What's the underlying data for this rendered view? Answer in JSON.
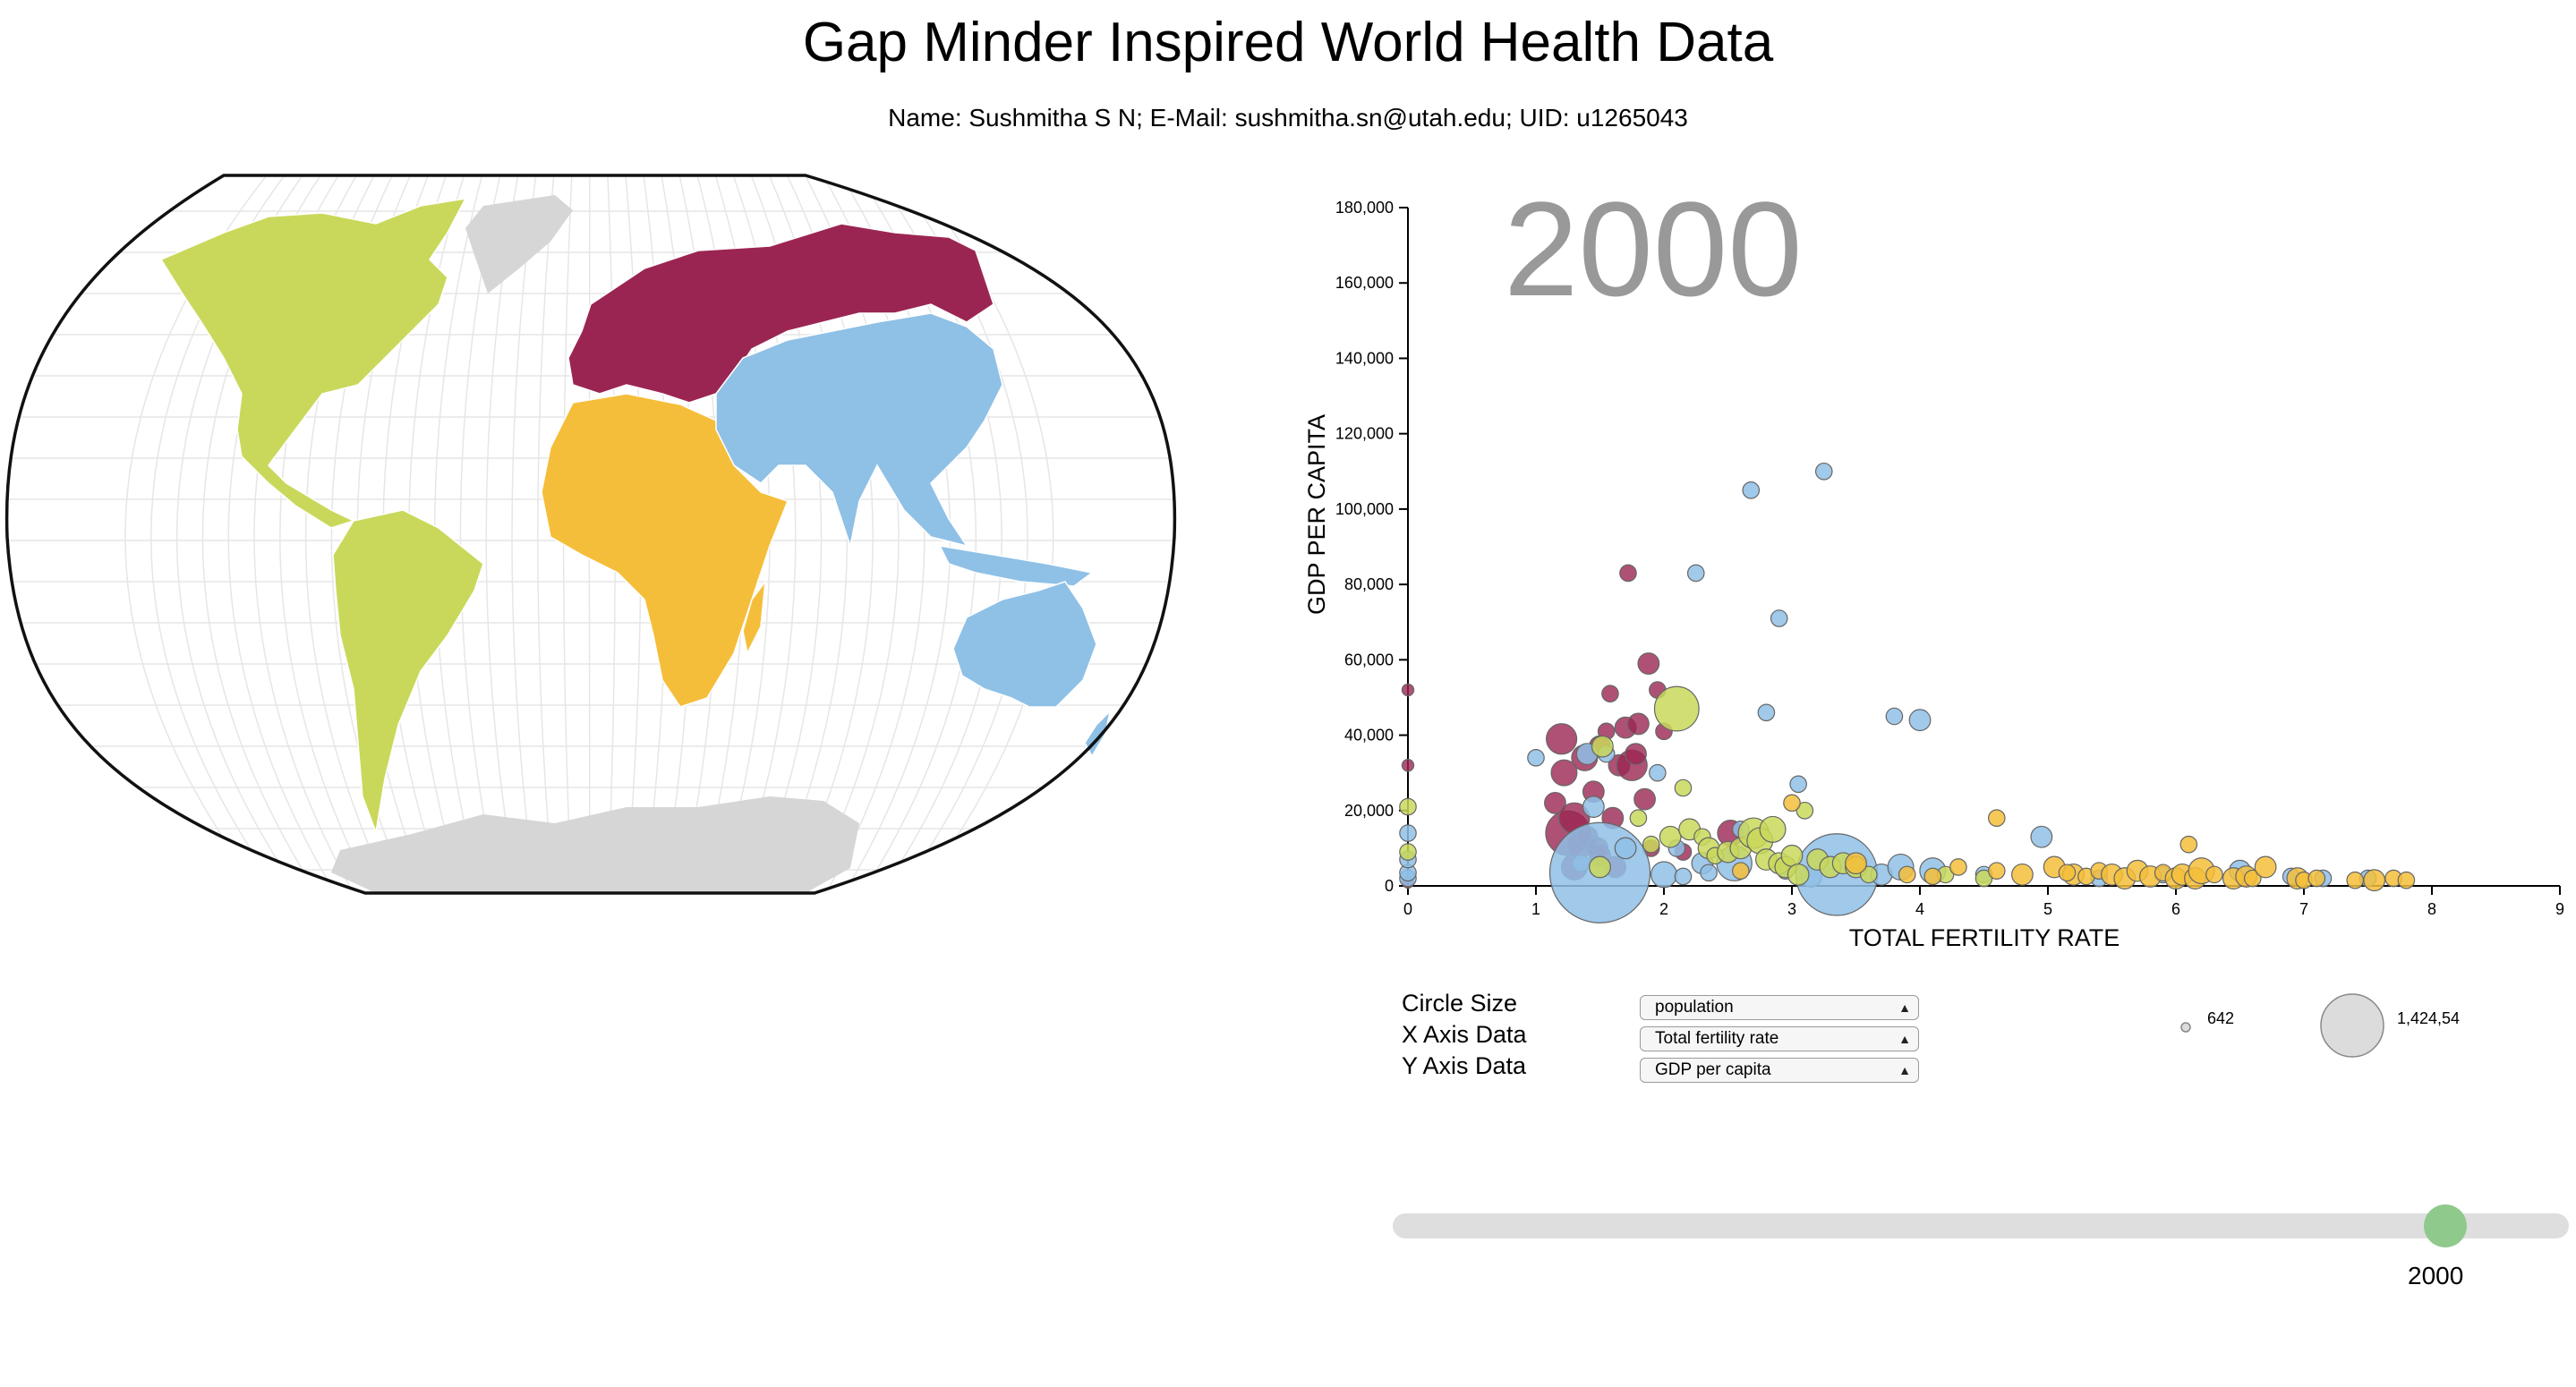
{
  "header": {
    "title": "Gap Minder Inspired World Health Data",
    "subtitle": "Name: Sushmitha S N; E-Mail: sushmitha.sn@utah.edu; UID: u1265043"
  },
  "colors": {
    "americas": "#c9d85a",
    "europe": "#9b2552",
    "africa": "#f5be3a",
    "asia": "#8fc0e6",
    "other": "#d7d7d7",
    "slider_thumb": "#8fc98c"
  },
  "map": {
    "regions": [
      "americas",
      "europe",
      "africa",
      "asia",
      "antarctica-greenland"
    ]
  },
  "controls": {
    "circle_size_label": "Circle Size",
    "x_axis_label": "X Axis Data",
    "y_axis_label": "Y Axis Data",
    "circle_size_value": "population",
    "x_axis_value": "Total fertility rate",
    "y_axis_value": "GDP per capita",
    "legend_min": "642",
    "legend_max": "1,424,54"
  },
  "slider": {
    "value": "2000"
  },
  "chart_data": {
    "type": "scatter",
    "year_label": "2000",
    "xlabel": "TOTAL FERTILITY RATE",
    "ylabel": "GDP PER CAPITA",
    "xlim": [
      0,
      9
    ],
    "ylim": [
      0,
      180000
    ],
    "xticks": [
      "0",
      "1",
      "2",
      "3",
      "4",
      "5",
      "6",
      "7",
      "8",
      "9"
    ],
    "yticks": [
      "0",
      "20,000",
      "40,000",
      "60,000",
      "80,000",
      "100,000",
      "120,000",
      "140,000",
      "160,000",
      "180,000"
    ],
    "series": [
      {
        "region": "europe",
        "points": [
          [
            0,
            52000,
            1
          ],
          [
            0,
            32000,
            1
          ],
          [
            0,
            1000,
            1
          ],
          [
            1.15,
            22000,
            3
          ],
          [
            1.2,
            39000,
            5
          ],
          [
            1.22,
            30000,
            4
          ],
          [
            1.25,
            14000,
            8
          ],
          [
            1.3,
            5000,
            4
          ],
          [
            1.35,
            11000,
            4
          ],
          [
            1.3,
            18000,
            5
          ],
          [
            1.38,
            34000,
            4
          ],
          [
            1.4,
            13000,
            3
          ],
          [
            1.45,
            25000,
            3
          ],
          [
            1.5,
            8000,
            3
          ],
          [
            1.5,
            37000,
            3
          ],
          [
            1.55,
            41000,
            2
          ],
          [
            1.58,
            51000,
            2
          ],
          [
            1.6,
            18000,
            3
          ],
          [
            1.62,
            5000,
            3
          ],
          [
            1.65,
            32000,
            3
          ],
          [
            1.7,
            42000,
            3
          ],
          [
            1.72,
            83000,
            2
          ],
          [
            1.75,
            32000,
            5
          ],
          [
            1.78,
            35000,
            3
          ],
          [
            1.8,
            43000,
            3
          ],
          [
            1.85,
            23000,
            3
          ],
          [
            1.88,
            59000,
            3
          ],
          [
            1.9,
            10000,
            2
          ],
          [
            1.95,
            52000,
            2
          ],
          [
            2.0,
            41000,
            2
          ],
          [
            2.15,
            9000,
            2
          ],
          [
            2.52,
            14000,
            4
          ],
          [
            1.48,
            10000,
            3
          ]
        ]
      },
      {
        "region": "asia",
        "points": [
          [
            0,
            2000,
            2
          ],
          [
            0,
            3500,
            2
          ],
          [
            0,
            7000,
            2
          ],
          [
            0,
            14000,
            2
          ],
          [
            1.0,
            34000,
            2
          ],
          [
            1.35,
            6000,
            2
          ],
          [
            1.4,
            35000,
            3
          ],
          [
            1.45,
            21000,
            3
          ],
          [
            1.5,
            3500,
            20
          ],
          [
            1.55,
            35000,
            2
          ],
          [
            1.7,
            10000,
            3
          ],
          [
            1.95,
            30000,
            2
          ],
          [
            2.0,
            3000,
            4
          ],
          [
            2.1,
            10000,
            2
          ],
          [
            2.25,
            83000,
            2
          ],
          [
            2.3,
            6000,
            3
          ],
          [
            2.55,
            6000,
            6
          ],
          [
            2.6,
            15000,
            2
          ],
          [
            2.68,
            105000,
            2
          ],
          [
            2.8,
            46000,
            2
          ],
          [
            2.9,
            71000,
            2
          ],
          [
            2.95,
            4000,
            2
          ],
          [
            3.05,
            27000,
            2
          ],
          [
            3.15,
            2500,
            3
          ],
          [
            3.25,
            110000,
            2
          ],
          [
            3.35,
            3000,
            16
          ],
          [
            3.7,
            3000,
            3
          ],
          [
            3.8,
            45000,
            2
          ],
          [
            3.85,
            5000,
            4
          ],
          [
            4.0,
            44000,
            3
          ],
          [
            4.1,
            4000,
            4
          ],
          [
            4.5,
            3000,
            2
          ],
          [
            4.95,
            13000,
            3
          ],
          [
            5.4,
            2000,
            2
          ],
          [
            5.9,
            3000,
            2
          ],
          [
            6.5,
            4000,
            3
          ],
          [
            6.9,
            2500,
            2
          ],
          [
            7.15,
            2000,
            2
          ],
          [
            7.5,
            2000,
            2
          ],
          [
            2.35,
            3500,
            2
          ],
          [
            2.15,
            2500,
            2
          ]
        ]
      },
      {
        "region": "americas",
        "points": [
          [
            0,
            21000,
            2
          ],
          [
            0,
            9000,
            2
          ],
          [
            1.5,
            5000,
            3
          ],
          [
            1.52,
            37000,
            3
          ],
          [
            1.8,
            18000,
            2
          ],
          [
            1.9,
            11000,
            2
          ],
          [
            2.05,
            13000,
            3
          ],
          [
            2.1,
            47000,
            8
          ],
          [
            2.15,
            26000,
            2
          ],
          [
            2.2,
            15000,
            3
          ],
          [
            2.3,
            13000,
            2
          ],
          [
            2.35,
            10000,
            3
          ],
          [
            2.4,
            8000,
            2
          ],
          [
            2.5,
            9000,
            3
          ],
          [
            2.6,
            10000,
            3
          ],
          [
            2.7,
            14000,
            5
          ],
          [
            2.75,
            12000,
            4
          ],
          [
            2.8,
            7000,
            3
          ],
          [
            2.85,
            15000,
            4
          ],
          [
            2.9,
            6000,
            3
          ],
          [
            2.95,
            5000,
            3
          ],
          [
            3.0,
            8000,
            3
          ],
          [
            3.05,
            3000,
            3
          ],
          [
            3.1,
            20000,
            2
          ],
          [
            3.2,
            7000,
            3
          ],
          [
            3.3,
            5000,
            3
          ],
          [
            3.4,
            6000,
            3
          ],
          [
            3.5,
            5000,
            3
          ],
          [
            3.6,
            3000,
            2
          ],
          [
            4.2,
            3000,
            2
          ],
          [
            4.5,
            2000,
            2
          ]
        ]
      },
      {
        "region": "africa",
        "points": [
          [
            2.6,
            4000,
            2
          ],
          [
            3.0,
            22000,
            2
          ],
          [
            3.5,
            6000,
            3
          ],
          [
            3.9,
            3000,
            2
          ],
          [
            4.1,
            2500,
            2
          ],
          [
            4.3,
            5000,
            2
          ],
          [
            4.6,
            4000,
            2
          ],
          [
            4.6,
            18000,
            2
          ],
          [
            4.8,
            3000,
            3
          ],
          [
            5.05,
            5000,
            3
          ],
          [
            5.2,
            3000,
            3
          ],
          [
            5.3,
            2500,
            2
          ],
          [
            5.4,
            4000,
            2
          ],
          [
            5.5,
            3000,
            3
          ],
          [
            5.6,
            2000,
            3
          ],
          [
            5.7,
            4000,
            3
          ],
          [
            5.8,
            2500,
            3
          ],
          [
            5.9,
            3500,
            2
          ],
          [
            6.0,
            2000,
            3
          ],
          [
            6.05,
            3000,
            3
          ],
          [
            6.1,
            11000,
            2
          ],
          [
            6.15,
            2000,
            3
          ],
          [
            6.2,
            4000,
            4
          ],
          [
            6.3,
            3000,
            2
          ],
          [
            6.45,
            2000,
            3
          ],
          [
            6.55,
            2500,
            3
          ],
          [
            6.6,
            2000,
            2
          ],
          [
            6.7,
            5000,
            3
          ],
          [
            6.95,
            2000,
            3
          ],
          [
            7.0,
            1500,
            2
          ],
          [
            7.1,
            2000,
            2
          ],
          [
            7.4,
            1500,
            2
          ],
          [
            7.55,
            1500,
            3
          ],
          [
            7.7,
            2000,
            2
          ],
          [
            7.8,
            1500,
            2
          ],
          [
            5.15,
            3500,
            2
          ]
        ]
      }
    ]
  }
}
